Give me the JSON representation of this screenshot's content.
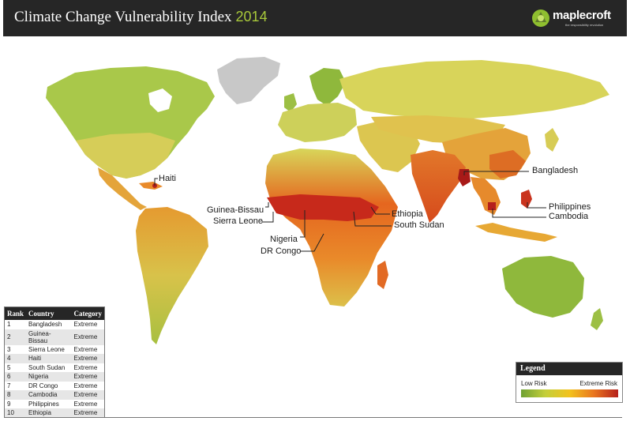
{
  "header": {
    "title": "Climate Change Vulnerability Index",
    "year": "2014",
    "logo_text": "maplecroft",
    "logo_tagline": "the responsibility revolution"
  },
  "colors": {
    "header_bg": "#262626",
    "year_color": "#a8c83a",
    "low_risk": "#6ea132",
    "medium_risk": "#f2c21d",
    "high_risk": "#e9761f",
    "extreme_risk": "#b5201c",
    "no_data": "#c8c8c8"
  },
  "map": {
    "callouts": [
      "Haiti",
      "Guinea-Bissau",
      "Sierra Leone",
      "Nigeria",
      "DR Congo",
      "Ethiopia",
      "South Sudan",
      "Bangladesh",
      "Philippines",
      "Cambodia"
    ]
  },
  "table": {
    "headers": [
      "Rank",
      "Country",
      "Category"
    ],
    "rows": [
      [
        "1",
        "Bangladesh",
        "Extreme"
      ],
      [
        "2",
        "Guinea-Bissau",
        "Extreme"
      ],
      [
        "3",
        "Sierra Leone",
        "Extreme"
      ],
      [
        "4",
        "Haiti",
        "Extreme"
      ],
      [
        "5",
        "South Sudan",
        "Extreme"
      ],
      [
        "6",
        "Nigeria",
        "Extreme"
      ],
      [
        "7",
        "DR Congo",
        "Extreme"
      ],
      [
        "8",
        "Cambodia",
        "Extreme"
      ],
      [
        "9",
        "Philippines",
        "Extreme"
      ],
      [
        "10",
        "Ethiopia",
        "Extreme"
      ]
    ]
  },
  "legend": {
    "title": "Legend",
    "low_label": "Low Risk",
    "high_label": "Extreme Risk"
  }
}
